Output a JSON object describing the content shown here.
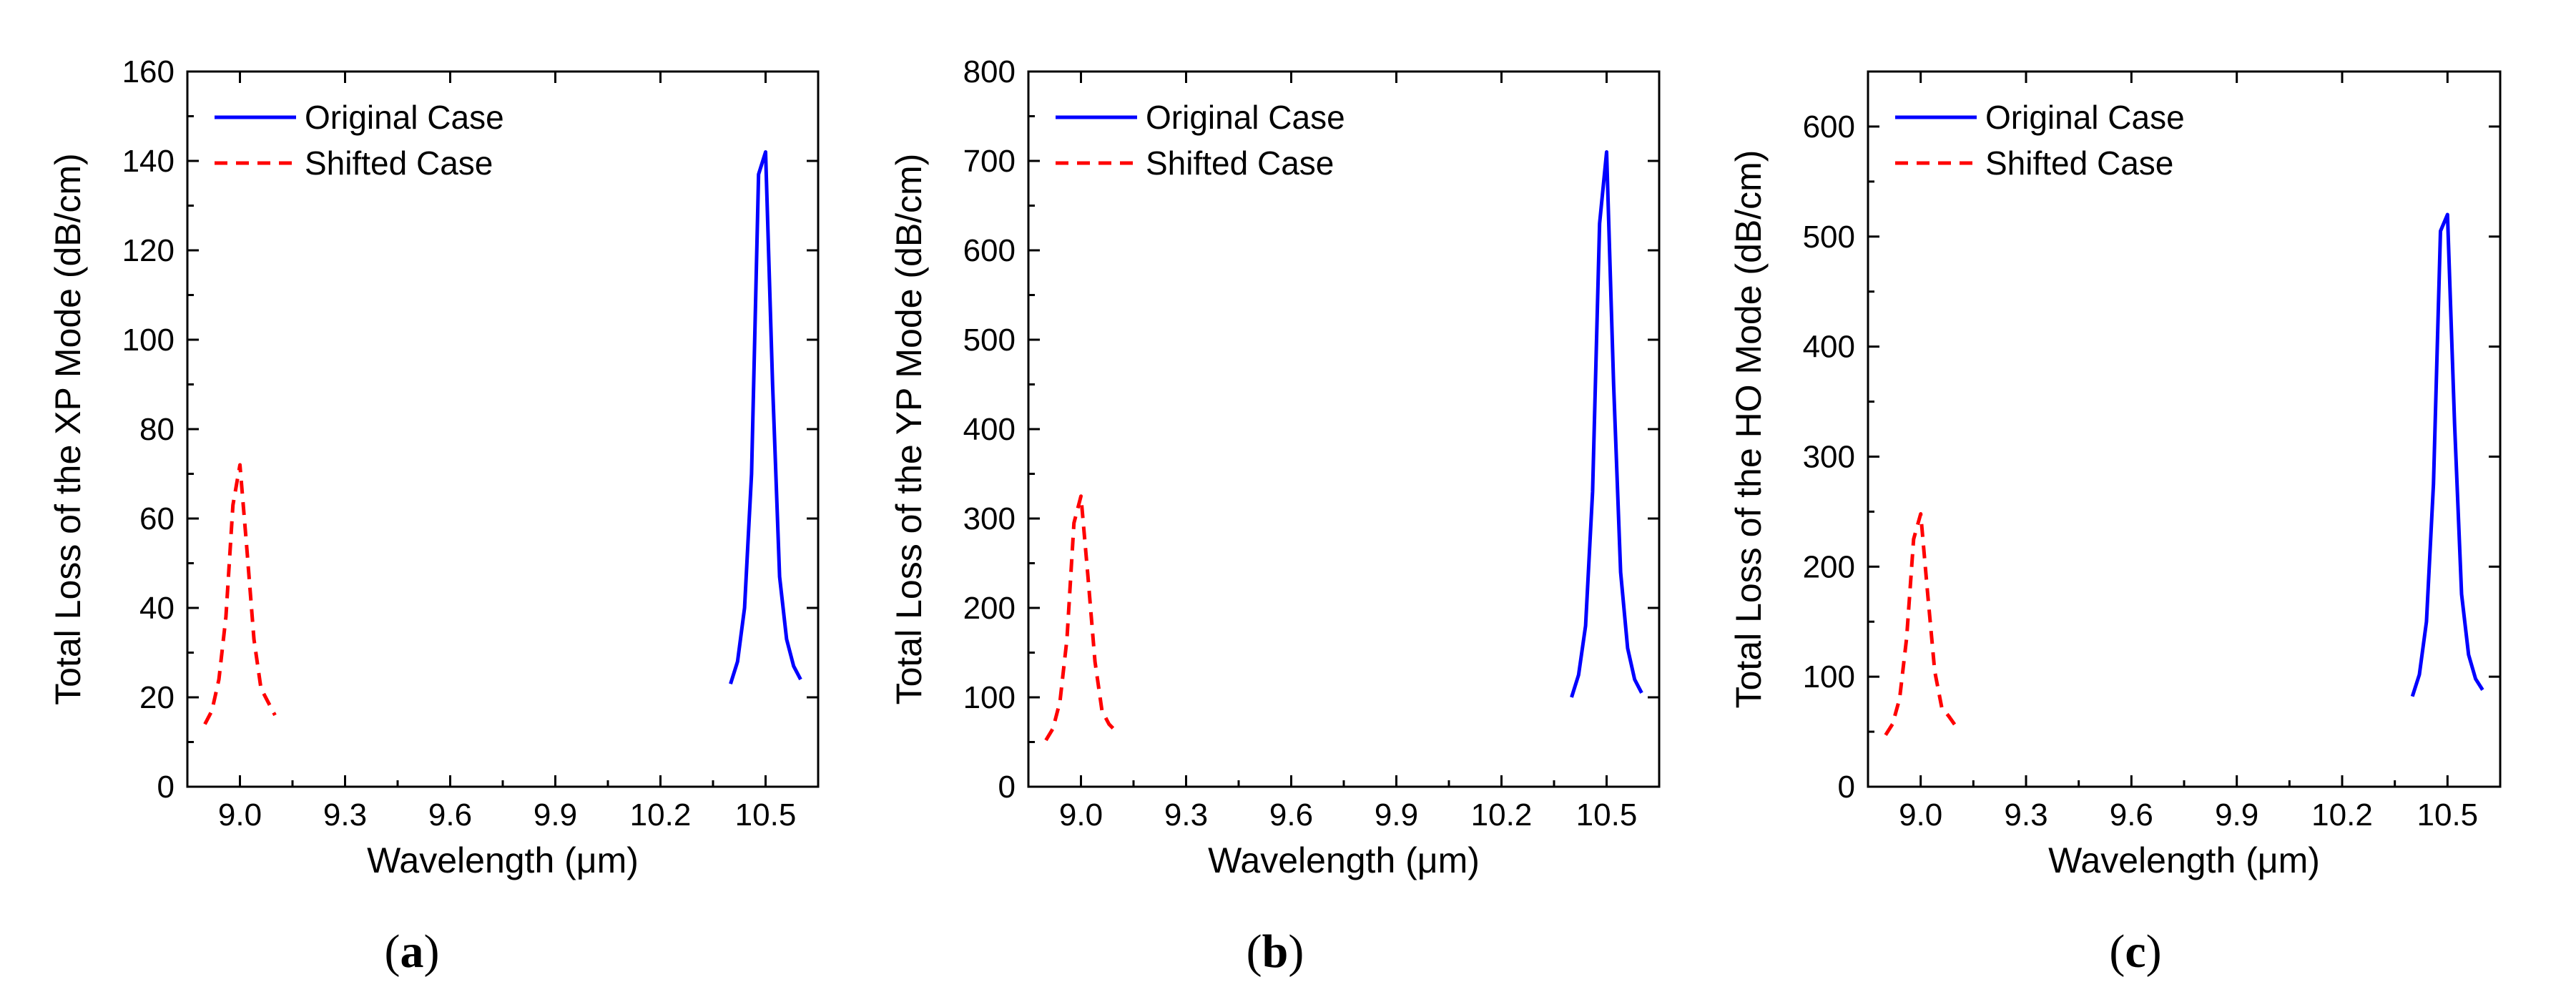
{
  "chart_data": [
    {
      "type": "line",
      "caption": {
        "open": "(",
        "letter": "a",
        "close": ")"
      },
      "xlabel": "Wavelength (μm)",
      "ylabel": "Total Loss of the XP Mode (dB/cm)",
      "xlim": [
        8.85,
        10.65
      ],
      "ylim": [
        0,
        160
      ],
      "xticks": [
        9.0,
        9.3,
        9.6,
        9.9,
        10.2,
        10.5
      ],
      "xtick_labels": [
        "9.0",
        "9.3",
        "9.6",
        "9.9",
        "10.2",
        "10.5"
      ],
      "yticks": [
        0,
        20,
        40,
        60,
        80,
        100,
        120,
        140,
        160
      ],
      "ytick_labels": [
        "0",
        "20",
        "40",
        "60",
        "80",
        "100",
        "120",
        "140",
        "160"
      ],
      "legend_position": "top-left",
      "grid": false,
      "series": [
        {
          "name": "Original Case",
          "color": "#0000ff",
          "dash": "solid",
          "x": [
            10.4,
            10.42,
            10.44,
            10.46,
            10.48,
            10.5,
            10.52,
            10.54,
            10.56,
            10.58,
            10.6
          ],
          "y": [
            23,
            28,
            40,
            70,
            137,
            142,
            90,
            47,
            33,
            27,
            24
          ]
        },
        {
          "name": "Shifted Case",
          "color": "#ff0000",
          "dash": "dashed",
          "x": [
            8.9,
            8.92,
            8.94,
            8.96,
            8.98,
            9.0,
            9.02,
            9.04,
            9.06,
            9.08,
            9.1
          ],
          "y": [
            14,
            17,
            24,
            38,
            63,
            72,
            53,
            33,
            22,
            19,
            16
          ]
        }
      ]
    },
    {
      "type": "line",
      "caption": {
        "open": "(",
        "letter": "b",
        "close": ")"
      },
      "xlabel": "Wavelength (μm)",
      "ylabel": "Total Loss of the YP Mode (dB/cm)",
      "xlim": [
        8.85,
        10.65
      ],
      "ylim": [
        0,
        800
      ],
      "xticks": [
        9.0,
        9.3,
        9.6,
        9.9,
        10.2,
        10.5
      ],
      "xtick_labels": [
        "9.0",
        "9.3",
        "9.6",
        "9.9",
        "10.2",
        "10.5"
      ],
      "yticks": [
        0,
        100,
        200,
        300,
        400,
        500,
        600,
        700,
        800
      ],
      "ytick_labels": [
        "0",
        "100",
        "200",
        "300",
        "400",
        "500",
        "600",
        "700",
        "800"
      ],
      "legend_position": "top-left",
      "grid": false,
      "series": [
        {
          "name": "Original Case",
          "color": "#0000ff",
          "dash": "solid",
          "x": [
            10.4,
            10.42,
            10.44,
            10.46,
            10.48,
            10.5,
            10.52,
            10.54,
            10.56,
            10.58,
            10.6
          ],
          "y": [
            100,
            125,
            180,
            330,
            630,
            710,
            450,
            240,
            155,
            120,
            105
          ]
        },
        {
          "name": "Shifted Case",
          "color": "#ff0000",
          "dash": "dashed",
          "x": [
            8.9,
            8.92,
            8.94,
            8.96,
            8.98,
            9.0,
            9.02,
            9.04,
            9.06,
            9.08,
            9.1
          ],
          "y": [
            52,
            65,
            95,
            165,
            295,
            325,
            235,
            140,
            85,
            70,
            62
          ]
        }
      ]
    },
    {
      "type": "line",
      "caption": {
        "open": "(",
        "letter": "c",
        "close": ")"
      },
      "xlabel": "Wavelength (μm)",
      "ylabel": "Total Loss of the HO Mode (dB/cm)",
      "xlim": [
        8.85,
        10.65
      ],
      "ylim": [
        0,
        650
      ],
      "xticks": [
        9.0,
        9.3,
        9.6,
        9.9,
        10.2,
        10.5
      ],
      "xtick_labels": [
        "9.0",
        "9.3",
        "9.6",
        "9.9",
        "10.2",
        "10.5"
      ],
      "yticks": [
        0,
        100,
        200,
        300,
        400,
        500,
        600
      ],
      "ytick_labels": [
        "0",
        "100",
        "200",
        "300",
        "400",
        "500",
        "600"
      ],
      "legend_position": "top-left",
      "grid": false,
      "series": [
        {
          "name": "Original Case",
          "color": "#0000ff",
          "dash": "solid",
          "x": [
            10.4,
            10.42,
            10.44,
            10.46,
            10.48,
            10.5,
            10.52,
            10.54,
            10.56,
            10.58,
            10.6
          ],
          "y": [
            82,
            102,
            150,
            275,
            505,
            520,
            330,
            175,
            120,
            98,
            88
          ]
        },
        {
          "name": "Shifted Case",
          "color": "#ff0000",
          "dash": "dashed",
          "x": [
            8.9,
            8.92,
            8.94,
            8.96,
            8.98,
            9.0,
            9.02,
            9.04,
            9.06,
            9.08,
            9.1
          ],
          "y": [
            47,
            57,
            80,
            135,
            225,
            248,
            175,
            105,
            72,
            64,
            55
          ]
        }
      ]
    }
  ]
}
